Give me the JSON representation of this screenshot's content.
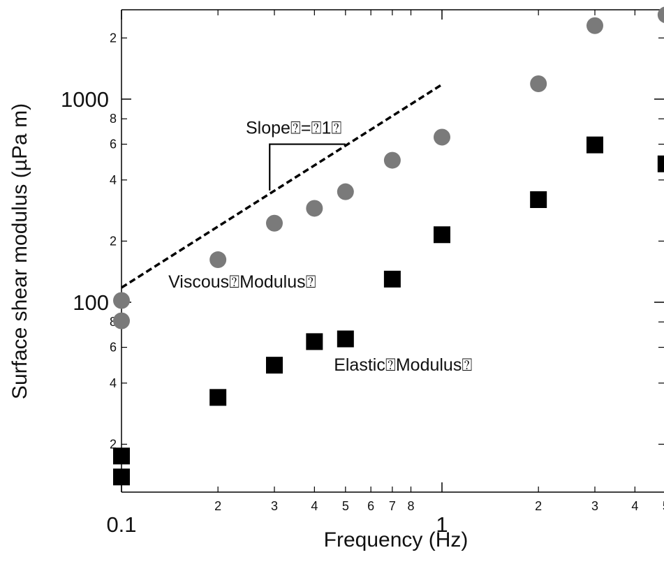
{
  "chart_data": {
    "type": "scatter",
    "title": "",
    "xlabel": "Frequency (Hz)",
    "ylabel": "Surface shear modulus (µPa m)",
    "xscale": "log",
    "yscale": "log",
    "xlim": [
      0.1,
      5
    ],
    "ylim": [
      13,
      2700
    ],
    "grid": false,
    "legend": "none",
    "x_major_ticks": [
      {
        "value": 0.1,
        "label": "0.1"
      },
      {
        "value": 1,
        "label": "1"
      }
    ],
    "x_minor_ticks": [
      {
        "value": 0.2,
        "label": "2"
      },
      {
        "value": 0.3,
        "label": "3"
      },
      {
        "value": 0.4,
        "label": "4"
      },
      {
        "value": 0.5,
        "label": "5"
      },
      {
        "value": 0.6,
        "label": "6"
      },
      {
        "value": 0.7,
        "label": "7"
      },
      {
        "value": 0.8,
        "label": "8"
      },
      {
        "value": 2,
        "label": "2"
      },
      {
        "value": 3,
        "label": "3"
      },
      {
        "value": 4,
        "label": "4"
      },
      {
        "value": 5,
        "label": "5"
      }
    ],
    "y_major_ticks": [
      {
        "value": 100,
        "label": "100"
      },
      {
        "value": 1000,
        "label": "1000"
      }
    ],
    "y_minor_ticks": [
      {
        "value": 20,
        "label": "2"
      },
      {
        "value": 40,
        "label": "4"
      },
      {
        "value": 60,
        "label": "6"
      },
      {
        "value": 80,
        "label": "8"
      },
      {
        "value": 200,
        "label": "2"
      },
      {
        "value": 400,
        "label": "4"
      },
      {
        "value": 600,
        "label": "6"
      },
      {
        "value": 800,
        "label": "8"
      },
      {
        "value": 2000,
        "label": "2"
      }
    ],
    "series": [
      {
        "marker": "circle",
        "color": "#7a7a7a",
        "points": [
          {
            "x": 0.1,
            "y": 102
          },
          {
            "x": 0.1,
            "y": 81
          },
          {
            "x": 0.2,
            "y": 162
          },
          {
            "x": 0.3,
            "y": 245
          },
          {
            "x": 0.4,
            "y": 290
          },
          {
            "x": 0.5,
            "y": 350
          },
          {
            "x": 0.7,
            "y": 500
          },
          {
            "x": 1,
            "y": 650
          },
          {
            "x": 2,
            "y": 1190
          },
          {
            "x": 3,
            "y": 2300
          },
          {
            "x": 5,
            "y": 2600
          }
        ]
      },
      {
        "marker": "square",
        "color": "#000000",
        "points": [
          {
            "x": 0.1,
            "y": 17.5
          },
          {
            "x": 0.1,
            "y": 13.8
          },
          {
            "x": 0.2,
            "y": 34
          },
          {
            "x": 0.3,
            "y": 49
          },
          {
            "x": 0.4,
            "y": 64
          },
          {
            "x": 0.5,
            "y": 66
          },
          {
            "x": 0.7,
            "y": 130
          },
          {
            "x": 1,
            "y": 215
          },
          {
            "x": 2,
            "y": 320
          },
          {
            "x": 3,
            "y": 595
          },
          {
            "x": 5,
            "y": 480
          }
        ]
      }
    ],
    "reference_line": {
      "style": "dashed",
      "color": "#000000",
      "from": {
        "x": 0.1,
        "y": 118
      },
      "to": {
        "x": 1,
        "y": 1180
      }
    },
    "annotations": [
      {
        "id": "slope",
        "text": "Slope⍰=⍰1⍰",
        "at": {
          "x": 0.3,
          "y": 650
        }
      },
      {
        "id": "viscous",
        "text": "Viscous⍰Modulus⍰",
        "at": {
          "x": 0.14,
          "y": 118
        }
      },
      {
        "id": "elastic",
        "text": "Elastic⍰Modulus⍰",
        "at": {
          "x": 0.46,
          "y": 46
        }
      }
    ],
    "slope_triangle": {
      "x1": 0.29,
      "x2": 0.5,
      "y_top": 600,
      "y_bottom": 355
    }
  }
}
